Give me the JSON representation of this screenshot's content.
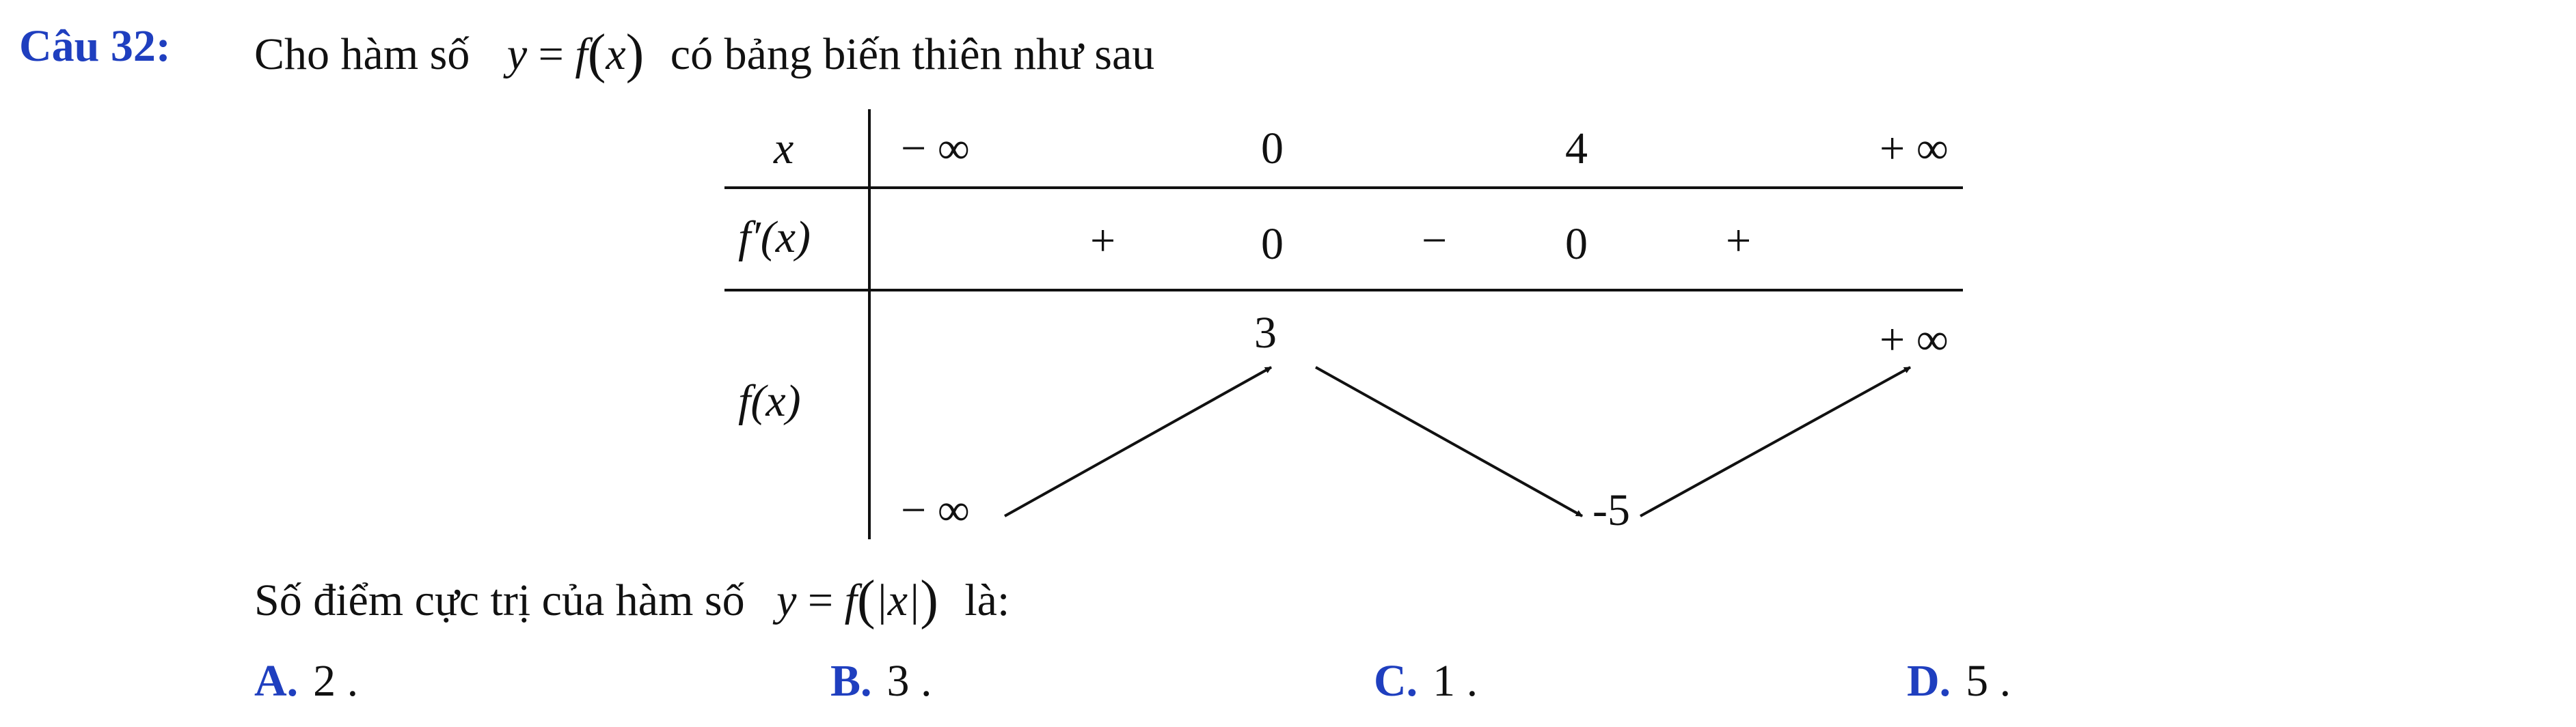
{
  "question": {
    "number": "Câu 32:",
    "intro": "Cho hàm số",
    "formula": {
      "lhs": "y",
      "eq": "=",
      "fn": "f",
      "lp": "(",
      "var": "x",
      "rp": ")"
    },
    "suffix": "có bảng biến thiên như sau"
  },
  "table": {
    "row_labels": {
      "x": "x",
      "fprime": "f′(x)",
      "f": "f(x)"
    },
    "x_values": [
      "− ∞",
      "0",
      "4",
      "+ ∞"
    ],
    "fprime_values": [
      "+",
      "0",
      "−",
      "0",
      "+"
    ],
    "f_values": {
      "start": "− ∞",
      "max": "3",
      "min": "-5",
      "end": "+ ∞"
    }
  },
  "prompt": {
    "prefix": "Số điểm cực trị của hàm số",
    "formula": {
      "lhs": "y",
      "eq": "=",
      "fn": "f",
      "lp": "(",
      "abs": "|x|",
      "rp": ")"
    },
    "suffix": "là:"
  },
  "options": [
    {
      "letter": "A.",
      "text": "2 ."
    },
    {
      "letter": "B.",
      "text": "3 ."
    },
    {
      "letter": "C.",
      "text": "1 ."
    },
    {
      "letter": "D.",
      "text": "5 ."
    }
  ],
  "colors": {
    "accent": "#1f3fbf",
    "text": "#111111"
  }
}
